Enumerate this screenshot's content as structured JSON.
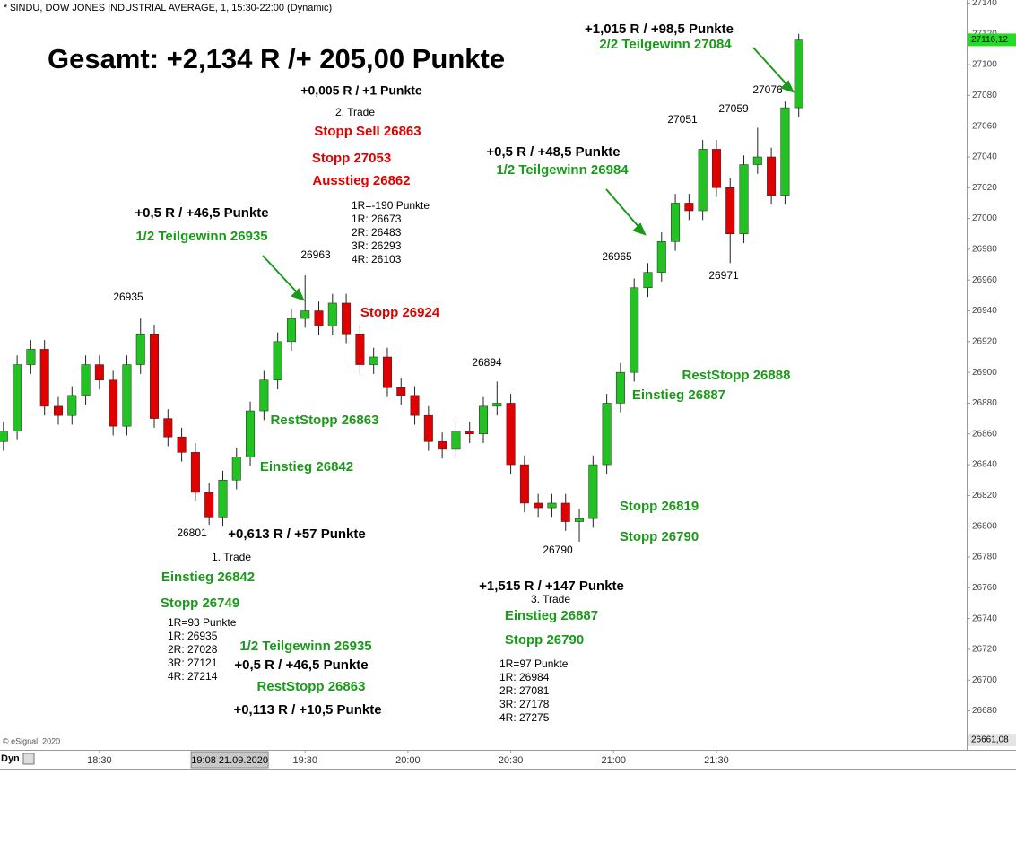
{
  "chart_data": {
    "type": "candlestick",
    "title": "* $INDU, DOW JONES INDUSTRIAL AVERAGE, 1, 15:30-22:00 (Dynamic)",
    "headline": "Gesamt: +2,134 R /+ 205,00 Punkte",
    "copyright": "© eSignal, 2020",
    "mode_label": "Dyn",
    "x": [
      "18:02",
      "18:06",
      "18:10",
      "18:14",
      "18:18",
      "18:22",
      "18:26",
      "18:30",
      "18:34",
      "18:38",
      "18:42",
      "18:46",
      "18:50",
      "18:54",
      "18:58",
      "19:02",
      "19:06",
      "19:10",
      "19:14",
      "19:18",
      "19:22",
      "19:26",
      "19:30",
      "19:34",
      "19:38",
      "19:42",
      "19:46",
      "19:50",
      "19:54",
      "19:58",
      "20:02",
      "20:06",
      "20:10",
      "20:14",
      "20:18",
      "20:22",
      "20:26",
      "20:30",
      "20:34",
      "20:38",
      "20:42",
      "20:46",
      "20:50",
      "20:54",
      "20:58",
      "21:02",
      "21:06",
      "21:10",
      "21:14",
      "21:18",
      "21:22",
      "21:26",
      "21:30",
      "21:34",
      "21:38",
      "21:42",
      "21:46",
      "21:50",
      "21:54"
    ],
    "open": [
      26855,
      26862,
      26905,
      26915,
      26878,
      26872,
      26885,
      26905,
      26895,
      26865,
      26905,
      26925,
      26870,
      26858,
      26848,
      26822,
      26806,
      26830,
      26845,
      26875,
      26895,
      26920,
      26935,
      26940,
      26930,
      26945,
      26925,
      26905,
      26910,
      26890,
      26885,
      26872,
      26855,
      26850,
      26862,
      26860,
      26878,
      26880,
      26840,
      26815,
      26812,
      26815,
      26803,
      26805,
      26840,
      26880,
      26900,
      26955,
      26965,
      26985,
      27010,
      27005,
      27045,
      27020,
      26990,
      27035,
      27040,
      27015,
      27072
    ],
    "high": [
      26868,
      26911,
      26921,
      26921,
      26884,
      26891,
      26911,
      26911,
      26901,
      26911,
      26935,
      26931,
      26876,
      26864,
      26854,
      26828,
      26836,
      26851,
      26881,
      26901,
      26926,
      26941,
      26963,
      26946,
      26951,
      26951,
      26931,
      26916,
      26916,
      26896,
      26891,
      26878,
      26861,
      26868,
      26868,
      26884,
      26894,
      26886,
      26846,
      26821,
      26821,
      26821,
      26811,
      26846,
      26886,
      26906,
      26961,
      26971,
      26991,
      27016,
      27016,
      27051,
      27051,
      27026,
      27041,
      27059,
      27046,
      27076,
      27120
    ],
    "low": [
      26849,
      26856,
      26899,
      26872,
      26866,
      26866,
      26879,
      26889,
      26859,
      26859,
      26899,
      26864,
      26852,
      26842,
      26816,
      26801,
      26800,
      26824,
      26839,
      26869,
      26889,
      26914,
      26929,
      26924,
      26924,
      26919,
      26899,
      26899,
      26884,
      26879,
      26866,
      26849,
      26844,
      26844,
      26854,
      26854,
      26872,
      26834,
      26809,
      26806,
      26806,
      26797,
      26790,
      26799,
      26834,
      26874,
      26894,
      26949,
      26959,
      26979,
      26999,
      26999,
      27014,
      26971,
      26984,
      27029,
      27009,
      27009,
      27066
    ],
    "close": [
      26862,
      26905,
      26915,
      26878,
      26872,
      26885,
      26905,
      26895,
      26865,
      26905,
      26925,
      26870,
      26858,
      26848,
      26822,
      26806,
      26830,
      26845,
      26875,
      26895,
      26920,
      26935,
      26940,
      26930,
      26945,
      26925,
      26905,
      26910,
      26890,
      26885,
      26872,
      26855,
      26850,
      26862,
      26860,
      26878,
      26880,
      26840,
      26815,
      26812,
      26815,
      26803,
      26805,
      26840,
      26880,
      26900,
      26955,
      26965,
      26985,
      27010,
      27005,
      27045,
      27020,
      26990,
      27035,
      27040,
      27015,
      27072,
      27116
    ],
    "up_color": "#22c222",
    "down_color": "#e00000",
    "xlim": [
      "18:01",
      "22:43"
    ],
    "xticks": [
      "18:30",
      "19:30",
      "20:00",
      "20:30",
      "21:00",
      "21:30"
    ],
    "cursor": {
      "value": "19:08",
      "label": "19:08 21.09.2020"
    },
    "ylim": [
      26657,
      27142
    ],
    "yticks": [
      26680,
      26700,
      26720,
      26740,
      26760,
      26780,
      26800,
      26820,
      26840,
      26860,
      26880,
      26900,
      26920,
      26940,
      26960,
      26980,
      27000,
      27020,
      27040,
      27060,
      27080,
      27100,
      27120,
      27140
    ],
    "last_price": {
      "value": 27116.12,
      "label": "27116,12"
    },
    "axis_min": {
      "value": 26661.08,
      "label": "26661,08"
    },
    "annotations": [
      {
        "text": "Gesamt: +2,134 R /+ 205,00 Punkte",
        "color": "#000000"
      },
      {
        "text": "+0,005 R / +1 Punkte",
        "color": "#000000"
      },
      {
        "text": "2. Trade",
        "color": "#000000"
      },
      {
        "text": "Stopp Sell 26863",
        "color": "#e00000"
      },
      {
        "text": "Stopp 27053",
        "color": "#e00000"
      },
      {
        "text": "Ausstieg 26862",
        "color": "#e00000"
      },
      {
        "text": "1R=-190 Punkte",
        "color": "#000000"
      },
      {
        "text": "1R: 26673",
        "color": "#000000"
      },
      {
        "text": "2R: 26483",
        "color": "#000000"
      },
      {
        "text": "3R: 26293",
        "color": "#000000"
      },
      {
        "text": "4R: 26103",
        "color": "#000000"
      },
      {
        "text": "+0,5 R / +46,5 Punkte",
        "color": "#000000"
      },
      {
        "text": "1/2 Teilgewinn 26935",
        "color": "#1a9a1a"
      },
      {
        "text": "26963",
        "color": "#000000"
      },
      {
        "text": "26935",
        "color": "#000000"
      },
      {
        "text": "Stopp 26924",
        "color": "#e00000"
      },
      {
        "text": "26894",
        "color": "#000000"
      },
      {
        "text": "RestStopp 26863",
        "color": "#1a9a1a"
      },
      {
        "text": "Einstieg 26842",
        "color": "#1a9a1a"
      },
      {
        "text": "26801",
        "color": "#000000"
      },
      {
        "text": "+0,613 R / +57 Punkte",
        "color": "#000000"
      },
      {
        "text": "1. Trade",
        "color": "#000000"
      },
      {
        "text": "Einstieg 26842",
        "color": "#1a9a1a"
      },
      {
        "text": "Stopp 26749",
        "color": "#1a9a1a"
      },
      {
        "text": "1R=93 Punkte",
        "color": "#000000"
      },
      {
        "text": "1R: 26935",
        "color": "#000000"
      },
      {
        "text": "2R: 27028",
        "color": "#000000"
      },
      {
        "text": "3R: 27121",
        "color": "#000000"
      },
      {
        "text": "4R: 27214",
        "color": "#000000"
      },
      {
        "text": "1/2 Teilgewinn 26935",
        "color": "#1a9a1a"
      },
      {
        "text": "+0,5 R / +46,5 Punkte",
        "color": "#000000"
      },
      {
        "text": "RestStopp 26863",
        "color": "#1a9a1a"
      },
      {
        "text": "+0,113 R / +10,5 Punkte",
        "color": "#000000"
      },
      {
        "text": "26790",
        "color": "#000000"
      },
      {
        "text": "+1,515 R / +147 Punkte",
        "color": "#000000"
      },
      {
        "text": "3. Trade",
        "color": "#000000"
      },
      {
        "text": "Einstieg 26887",
        "color": "#1a9a1a"
      },
      {
        "text": "Stopp 26790",
        "color": "#1a9a1a"
      },
      {
        "text": "1R=97 Punkte",
        "color": "#000000"
      },
      {
        "text": "1R: 26984",
        "color": "#000000"
      },
      {
        "text": "2R: 27081",
        "color": "#000000"
      },
      {
        "text": "3R: 27178",
        "color": "#000000"
      },
      {
        "text": "4R: 27275",
        "color": "#000000"
      },
      {
        "text": "Stopp 26819",
        "color": "#1a9a1a"
      },
      {
        "text": "Stopp 26790",
        "color": "#1a9a1a"
      },
      {
        "text": "RestStopp 26888",
        "color": "#1a9a1a"
      },
      {
        "text": "Einstieg 26887",
        "color": "#1a9a1a"
      },
      {
        "text": "26965",
        "color": "#000000"
      },
      {
        "text": "+0,5 R / +48,5 Punkte",
        "color": "#000000"
      },
      {
        "text": "1/2 Teilgewinn 26984",
        "color": "#1a9a1a"
      },
      {
        "text": "27051",
        "color": "#000000"
      },
      {
        "text": "27059",
        "color": "#000000"
      },
      {
        "text": "26971",
        "color": "#000000"
      },
      {
        "text": "27076",
        "color": "#000000"
      },
      {
        "text": "+1,015 R / +98,5 Punkte",
        "color": "#000000"
      },
      {
        "text": "2/2 Teilgewinn 27084",
        "color": "#1a9a1a"
      }
    ]
  }
}
